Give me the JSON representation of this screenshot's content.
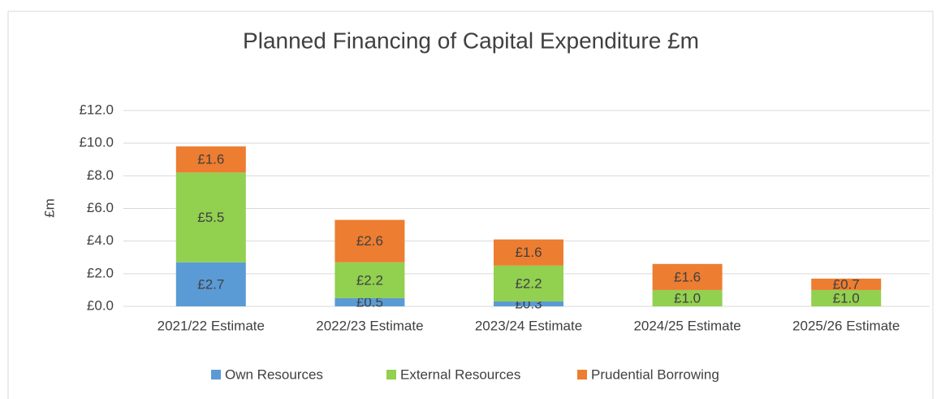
{
  "chart_data": {
    "type": "stacked_bar",
    "title": "Planned Financing of Capital Expenditure £m",
    "y_label": "£m",
    "categories": [
      "2021/22 Estimate",
      "2022/23 Estimate",
      "2023/24 Estimate",
      "2024/25 Estimate",
      "2025/26 Estimate"
    ],
    "series": [
      {
        "name": "Own Resources",
        "color": "#5b9bd5",
        "values": [
          2.7,
          0.5,
          0.3,
          null,
          null
        ],
        "value_labels": [
          "£2.7",
          "£0.5",
          "£0.3",
          null,
          null
        ]
      },
      {
        "name": "External Resources",
        "color": "#92d050",
        "values": [
          5.5,
          2.2,
          2.2,
          1.0,
          1.0
        ],
        "value_labels": [
          "£5.5",
          "£2.2",
          "£2.2",
          "£1.0",
          "£1.0"
        ]
      },
      {
        "name": "Prudential Borrowing",
        "color": "#ed7d31",
        "values": [
          1.6,
          2.6,
          1.6,
          1.6,
          0.7
        ],
        "value_labels": [
          "£1.6",
          "£2.6",
          "£1.6",
          "£1.6",
          "£0.7"
        ]
      }
    ],
    "ylim": [
      0,
      12
    ],
    "yticks": [
      {
        "value": 0,
        "label": "£0.0"
      },
      {
        "value": 2,
        "label": "£2.0"
      },
      {
        "value": 4,
        "label": "£4.0"
      },
      {
        "value": 6,
        "label": "£6.0"
      },
      {
        "value": 8,
        "label": "£8.0"
      },
      {
        "value": 10,
        "label": "£10.0"
      },
      {
        "value": 12,
        "label": "£12.0"
      }
    ],
    "grid": true,
    "legend": "bottom"
  }
}
